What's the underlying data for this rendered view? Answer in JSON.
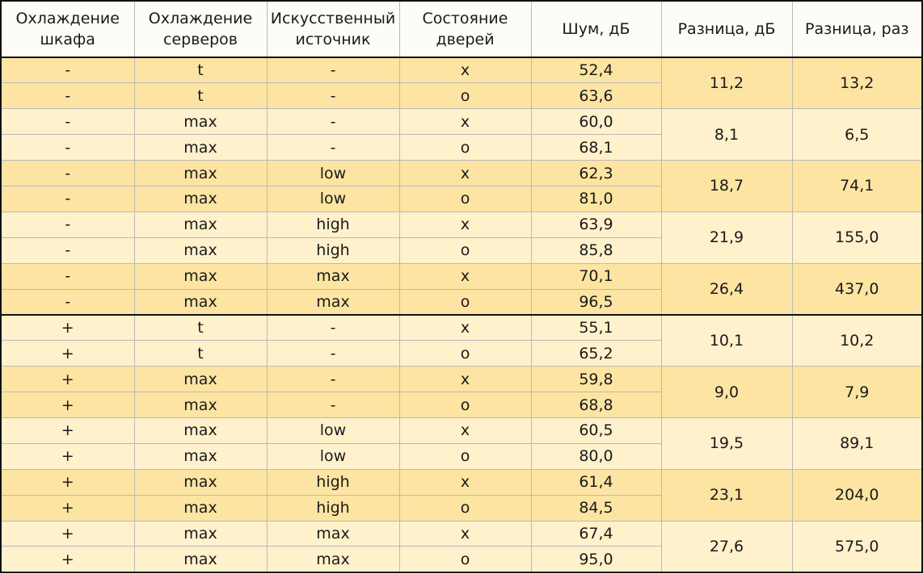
{
  "headers": [
    [
      "Охлаждение",
      "шкафа"
    ],
    [
      "Охлаждение",
      "серверов"
    ],
    [
      "Искусственный",
      "источник"
    ],
    [
      "Состояние",
      "дверей"
    ],
    [
      "Шум, дБ"
    ],
    [
      "Разница, дБ"
    ],
    [
      "Разница, раз"
    ]
  ],
  "colors": {
    "dark_band": "#fde4a2",
    "light_band": "#fff1cc",
    "header_bg": "#fefcf6",
    "thick_rule": "#111111"
  },
  "groups": [
    {
      "rows": [
        [
          "-",
          "t",
          "-",
          "x",
          "52,4"
        ],
        [
          "-",
          "t",
          "-",
          "o",
          "63,6"
        ]
      ],
      "diff_db": "11,2",
      "diff_times": "13,2"
    },
    {
      "rows": [
        [
          "-",
          "max",
          "-",
          "x",
          "60,0"
        ],
        [
          "-",
          "max",
          "-",
          "o",
          "68,1"
        ]
      ],
      "diff_db": "8,1",
      "diff_times": "6,5"
    },
    {
      "rows": [
        [
          "-",
          "max",
          "low",
          "x",
          "62,3"
        ],
        [
          "-",
          "max",
          "low",
          "o",
          "81,0"
        ]
      ],
      "diff_db": "18,7",
      "diff_times": "74,1"
    },
    {
      "rows": [
        [
          "-",
          "max",
          "high",
          "x",
          "63,9"
        ],
        [
          "-",
          "max",
          "high",
          "o",
          "85,8"
        ]
      ],
      "diff_db": "21,9",
      "diff_times": "155,0"
    },
    {
      "rows": [
        [
          "-",
          "max",
          "max",
          "x",
          "70,1"
        ],
        [
          "-",
          "max",
          "max",
          "o",
          "96,5"
        ]
      ],
      "diff_db": "26,4",
      "diff_times": "437,0"
    },
    {
      "rows": [
        [
          "+",
          "t",
          "-",
          "x",
          "55,1"
        ],
        [
          "+",
          "t",
          "-",
          "o",
          "65,2"
        ]
      ],
      "diff_db": "10,1",
      "diff_times": "10,2"
    },
    {
      "rows": [
        [
          "+",
          "max",
          "-",
          "x",
          "59,8"
        ],
        [
          "+",
          "max",
          "-",
          "o",
          "68,8"
        ]
      ],
      "diff_db": "9,0",
      "diff_times": "7,9"
    },
    {
      "rows": [
        [
          "+",
          "max",
          "low",
          "x",
          "60,5"
        ],
        [
          "+",
          "max",
          "low",
          "o",
          "80,0"
        ]
      ],
      "diff_db": "19,5",
      "diff_times": "89,1"
    },
    {
      "rows": [
        [
          "+",
          "max",
          "high",
          "x",
          "61,4"
        ],
        [
          "+",
          "max",
          "high",
          "o",
          "84,5"
        ]
      ],
      "diff_db": "23,1",
      "diff_times": "204,0"
    },
    {
      "rows": [
        [
          "+",
          "max",
          "max",
          "x",
          "67,4"
        ],
        [
          "+",
          "max",
          "max",
          "o",
          "95,0"
        ]
      ],
      "diff_db": "27,6",
      "diff_times": "575,0"
    }
  ]
}
